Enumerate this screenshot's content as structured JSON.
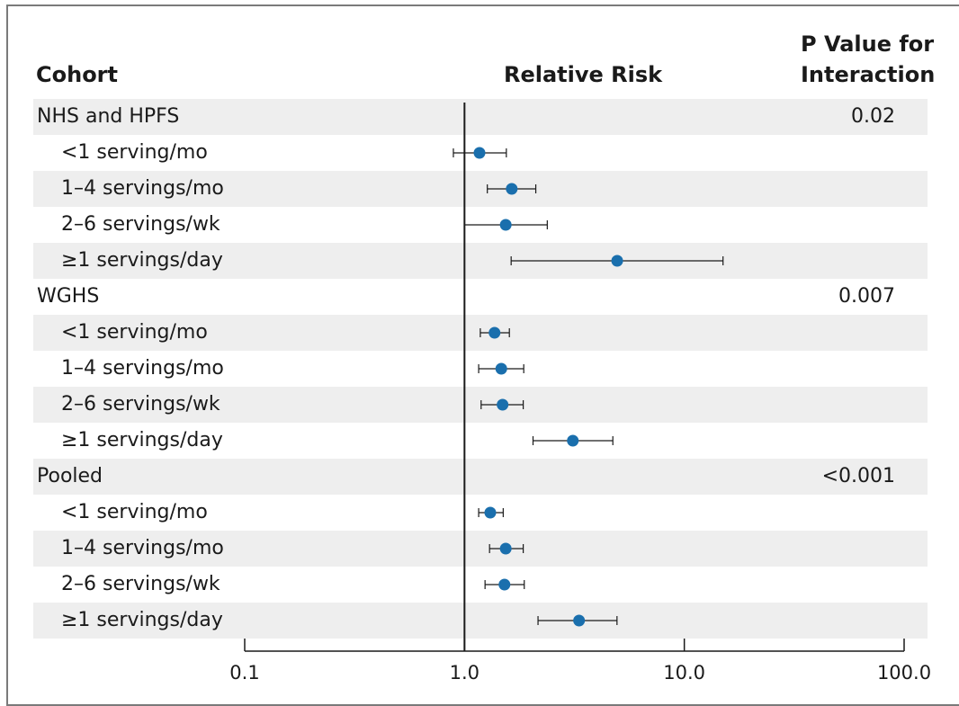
{
  "headers": {
    "cohort": "Cohort",
    "relative_risk": "Relative Risk",
    "p_value_line1": "P Value for",
    "p_value_line2": "Interaction"
  },
  "colors": {
    "point": "#1a6fad",
    "row_shade": "#eeeeee",
    "line": "#1a1a1a"
  },
  "chart_data": {
    "type": "forest",
    "xscale": "log",
    "xlim": [
      0.1,
      100.0
    ],
    "reference_line": 1.0,
    "x_ticks": [
      "0.1",
      "1.0",
      "10.0",
      "100.0"
    ],
    "x_tick_values": [
      0.1,
      1.0,
      10.0,
      100.0
    ],
    "rows": [
      {
        "label": "NHS and HPFS",
        "kind": "group",
        "p_value": "0.02"
      },
      {
        "label": "<1 serving/mo",
        "kind": "sub",
        "estimate": 1.17,
        "lower": 0.89,
        "upper": 1.55
      },
      {
        "label": "1–4 servings/mo",
        "kind": "sub",
        "estimate": 1.64,
        "lower": 1.27,
        "upper": 2.11
      },
      {
        "label": "2–6 servings/wk",
        "kind": "sub",
        "estimate": 1.54,
        "lower": 1.0,
        "upper": 2.38
      },
      {
        "label": "≥1 servings/day",
        "kind": "sub",
        "estimate": 4.95,
        "lower": 1.63,
        "upper": 15.0
      },
      {
        "label": "WGHS",
        "kind": "group",
        "p_value": "0.007"
      },
      {
        "label": "<1 serving/mo",
        "kind": "sub",
        "estimate": 1.37,
        "lower": 1.18,
        "upper": 1.6
      },
      {
        "label": "1–4 servings/mo",
        "kind": "sub",
        "estimate": 1.47,
        "lower": 1.16,
        "upper": 1.86
      },
      {
        "label": "2–6 servings/wk",
        "kind": "sub",
        "estimate": 1.49,
        "lower": 1.19,
        "upper": 1.85
      },
      {
        "label": "≥1 servings/day",
        "kind": "sub",
        "estimate": 3.11,
        "lower": 2.05,
        "upper": 4.73
      },
      {
        "label": "Pooled",
        "kind": "group",
        "p_value": "<0.001"
      },
      {
        "label": "<1 serving/mo",
        "kind": "sub",
        "estimate": 1.31,
        "lower": 1.16,
        "upper": 1.5
      },
      {
        "label": "1–4 servings/mo",
        "kind": "sub",
        "estimate": 1.54,
        "lower": 1.3,
        "upper": 1.85
      },
      {
        "label": "2–6 servings/wk",
        "kind": "sub",
        "estimate": 1.52,
        "lower": 1.24,
        "upper": 1.87
      },
      {
        "label": "≥1 servings/day",
        "kind": "sub",
        "estimate": 3.32,
        "lower": 2.16,
        "upper": 4.94
      }
    ]
  }
}
